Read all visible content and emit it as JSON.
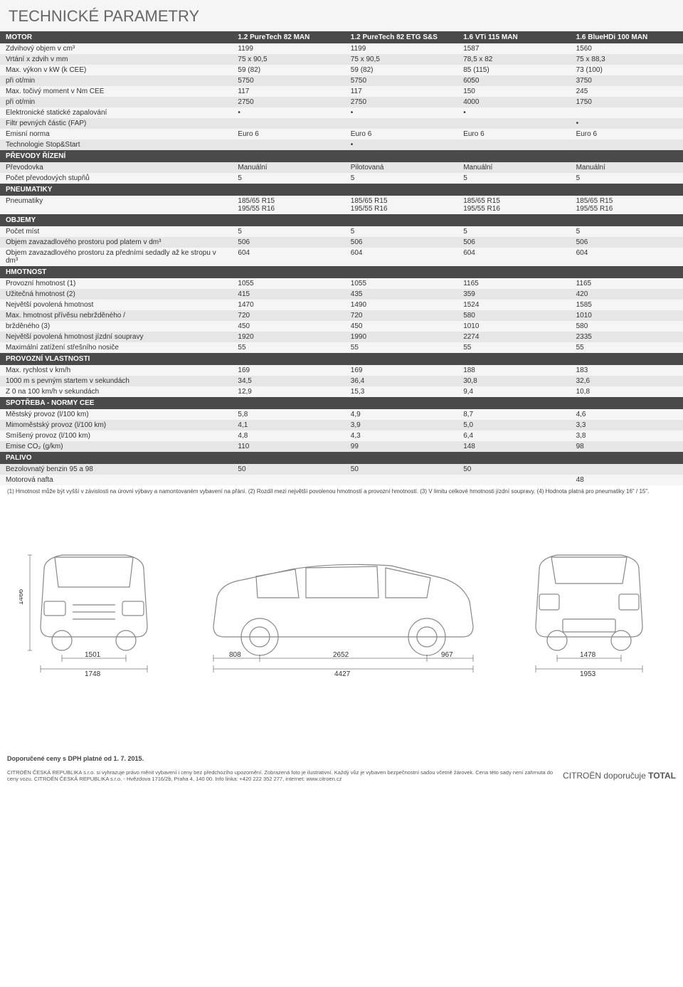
{
  "title": "TECHNICKÉ PARAMETRY",
  "columns": [
    "1.2 PureTech 82 MAN",
    "1.2 PureTech 82 ETG S&S",
    "1.6 VTi 115 MAN",
    "1.6 BlueHDi 100 MAN"
  ],
  "sections": [
    {
      "name": "MOTOR",
      "rows": [
        {
          "label": "Zdvihový objem v cm³",
          "v": [
            "1199",
            "1199",
            "1587",
            "1560"
          ]
        },
        {
          "label": "Vrtání x zdvih v mm",
          "v": [
            "75 x 90,5",
            "75 x 90,5",
            "78,5 x 82",
            "75 x 88,3"
          ]
        },
        {
          "label": "Max. výkon v kW (k CEE)",
          "v": [
            "59 (82)",
            "59 (82)",
            "85 (115)",
            "73 (100)"
          ]
        },
        {
          "label": "při ot/min",
          "v": [
            "5750",
            "5750",
            "6050",
            "3750"
          ]
        },
        {
          "label": "Max. točivý moment v Nm CEE",
          "v": [
            "117",
            "117",
            "150",
            "245"
          ]
        },
        {
          "label": "při ot/min",
          "v": [
            "2750",
            "2750",
            "4000",
            "1750"
          ]
        },
        {
          "label": "Elektronické statické zapalování",
          "v": [
            "•",
            "•",
            "•",
            ""
          ]
        },
        {
          "label": "Filtr pevných částic (FAP)",
          "v": [
            "",
            "",
            "",
            "•"
          ]
        },
        {
          "label": "Emisní norma",
          "v": [
            "Euro 6",
            "Euro 6",
            "Euro 6",
            "Euro 6"
          ]
        },
        {
          "label": "Technologie Stop&Start",
          "v": [
            "",
            "•",
            "",
            ""
          ]
        }
      ]
    },
    {
      "name": "PŘEVODY ŘÍZENÍ",
      "rows": [
        {
          "label": "Převodovka",
          "v": [
            "Manuální",
            "Pilotovaná",
            "Manuální",
            "Manuální"
          ]
        },
        {
          "label": "Počet převodových stupňů",
          "v": [
            "5",
            "5",
            "5",
            "5"
          ]
        }
      ]
    },
    {
      "name": "PNEUMATIKY",
      "rows": [
        {
          "label": "Pneumatiky",
          "v": [
            "185/65 R15\n195/55 R16",
            "185/65 R15\n195/55 R16",
            "185/65 R15\n195/55 R16",
            "185/65 R15\n195/55 R16"
          ]
        }
      ]
    },
    {
      "name": "OBJEMY",
      "rows": [
        {
          "label": "Počet míst",
          "v": [
            "5",
            "5",
            "5",
            "5"
          ]
        },
        {
          "label": "Objem zavazadlového prostoru pod platem v dm³",
          "v": [
            "506",
            "506",
            "506",
            "506"
          ]
        },
        {
          "label": "Objem zavazadlového prostoru za předními sedadly až ke stropu v dm³",
          "v": [
            "604",
            "604",
            "604",
            "604"
          ]
        }
      ]
    },
    {
      "name": "HMOTNOST",
      "rows": [
        {
          "label": "Provozní hmotnost (1)",
          "v": [
            "1055",
            "1055",
            "1165",
            "1165"
          ]
        },
        {
          "label": "Užitečná hmotnost (2)",
          "v": [
            "415",
            "435",
            "359",
            "420"
          ]
        },
        {
          "label": "Největší povolená hmotnost",
          "v": [
            "1470",
            "1490",
            "1524",
            "1585"
          ]
        },
        {
          "label": "Max. hmotnost přívěsu    nebržděného /",
          "v": [
            "720",
            "720",
            "580",
            "1010"
          ]
        },
        {
          "label": "                                    bržděného (3)",
          "v": [
            "450",
            "450",
            "1010",
            "580"
          ]
        },
        {
          "label": "Největší povolená hmotnost jízdní soupravy",
          "v": [
            "1920",
            "1990",
            "2274",
            "2335"
          ]
        },
        {
          "label": "Maximální zatížení střešního nosiče",
          "v": [
            "55",
            "55",
            "55",
            "55"
          ]
        }
      ]
    },
    {
      "name": "PROVOZNÍ VLASTNOSTI",
      "rows": [
        {
          "label": "Max. rychlost v km/h",
          "v": [
            "169",
            "169",
            "188",
            "183"
          ]
        },
        {
          "label": "1000 m s pevným startem v sekundách",
          "v": [
            "34,5",
            "36,4",
            "30,8",
            "32,6"
          ]
        },
        {
          "label": "Z 0 na 100 km/h v sekundách",
          "v": [
            "12,9",
            "15,3",
            "9,4",
            "10,8"
          ]
        }
      ]
    },
    {
      "name": "SPOTŘEBA - NORMY CEE",
      "rows": [
        {
          "label": "Městský provoz (l/100 km)",
          "v": [
            "5,8",
            "4,9",
            "8,7",
            "4,6"
          ]
        },
        {
          "label": "Mimoměstský provoz (l/100 km)",
          "v": [
            "4,1",
            "3,9",
            "5,0",
            "3,3"
          ]
        },
        {
          "label": "Smíšený provoz (l/100 km)",
          "v": [
            "4,8",
            "4,3",
            "6,4",
            "3,8"
          ]
        },
        {
          "label": "Emise CO₂ (g/km)",
          "v": [
            "110",
            "99",
            "148",
            "98"
          ]
        }
      ]
    },
    {
      "name": "PALIVO",
      "rows": [
        {
          "label": "Bezolovnatý benzin 95 a 98",
          "v": [
            "50",
            "50",
            "50",
            ""
          ]
        },
        {
          "label": "Motorová nafta",
          "v": [
            "",
            "",
            "",
            "48"
          ]
        }
      ]
    }
  ],
  "footnotes": "(1) Hmotnost může být vyšší v závislosti na úrovni výbavy a namontovaném vybavení na přání. (2) Rozdíl mezi největší povolenou hmotností a provozní hmotností. (3) V limitu celkové hmotnosti jízdní soupravy. (4) Hodnota platná pro pneumatiky 16\" / 15\".",
  "dimensions": {
    "height": "1466",
    "track_front": "1501",
    "width_front": "1748",
    "front_overhang": "808",
    "wheelbase": "2652",
    "rear_overhang": "967",
    "length": "4427",
    "track_rear": "1478",
    "width_rear": "1953"
  },
  "bottom_date": "Doporučené ceny s DPH platné od 1. 7. 2015.",
  "legal": "CITROËN ČESKÁ REPUBLIKA s.r.o. si vyhrazuje právo měnit vybavení i ceny bez předchozího upozornění. Zobrazená foto je ilustrativní. Každý vůz je vybaven bezpečnostní sadou včetně žárovek. Cena této sady není zahrnuta do ceny vozu. CITROËN ČESKÁ REPUBLIKA s.r.o. - Hvězdova 1716/2b, Praha 4, 140 00. Info linka: +420 222 352 277, internet: www.citroen.cz",
  "brand_suffix": "CITROËN doporučuje"
}
